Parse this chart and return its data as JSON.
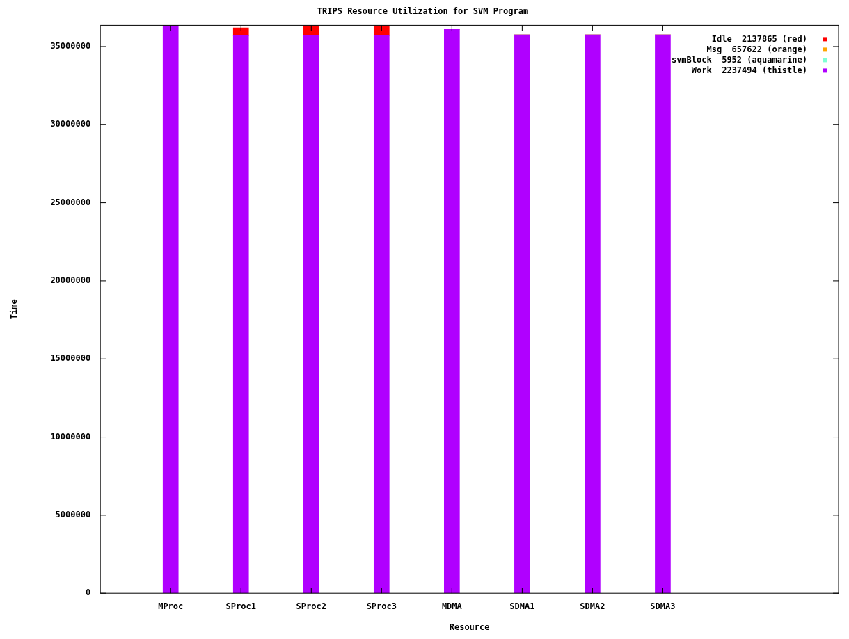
{
  "chart_data": {
    "type": "bar",
    "stacked": true,
    "title": "TRIPS Resource Utilization for SVM Program",
    "xlabel": "Resource",
    "ylabel": "Time",
    "categories": [
      "MProc",
      "SProc1",
      "SProc2",
      "SProc3",
      "MDMA",
      "SDMA1",
      "SDMA2",
      "SDMA3"
    ],
    "series": [
      {
        "name": "Work  2237494 (thistle)",
        "color": "#b000ff",
        "values": [
          36360000,
          35700000,
          35700000,
          35700000,
          36100000,
          35750000,
          35750000,
          35750000
        ]
      },
      {
        "name": "svmBlock  5952 (aquamarine)",
        "color": "#7fffd4",
        "values": [
          0,
          0,
          0,
          0,
          0,
          0,
          0,
          0
        ]
      },
      {
        "name": "Msg  657622 (orange)",
        "color": "#ffa500",
        "values": [
          0,
          0,
          0,
          0,
          0,
          0,
          0,
          0
        ]
      },
      {
        "name": "Idle  2137865 (red)",
        "color": "#ff0000",
        "values": [
          0,
          500000,
          660000,
          660000,
          0,
          0,
          0,
          0
        ]
      }
    ],
    "ylim": [
      0,
      36360000
    ],
    "yticks": [
      0,
      5000000,
      10000000,
      15000000,
      20000000,
      25000000,
      30000000,
      35000000
    ],
    "grid": false,
    "legend": "top right"
  }
}
